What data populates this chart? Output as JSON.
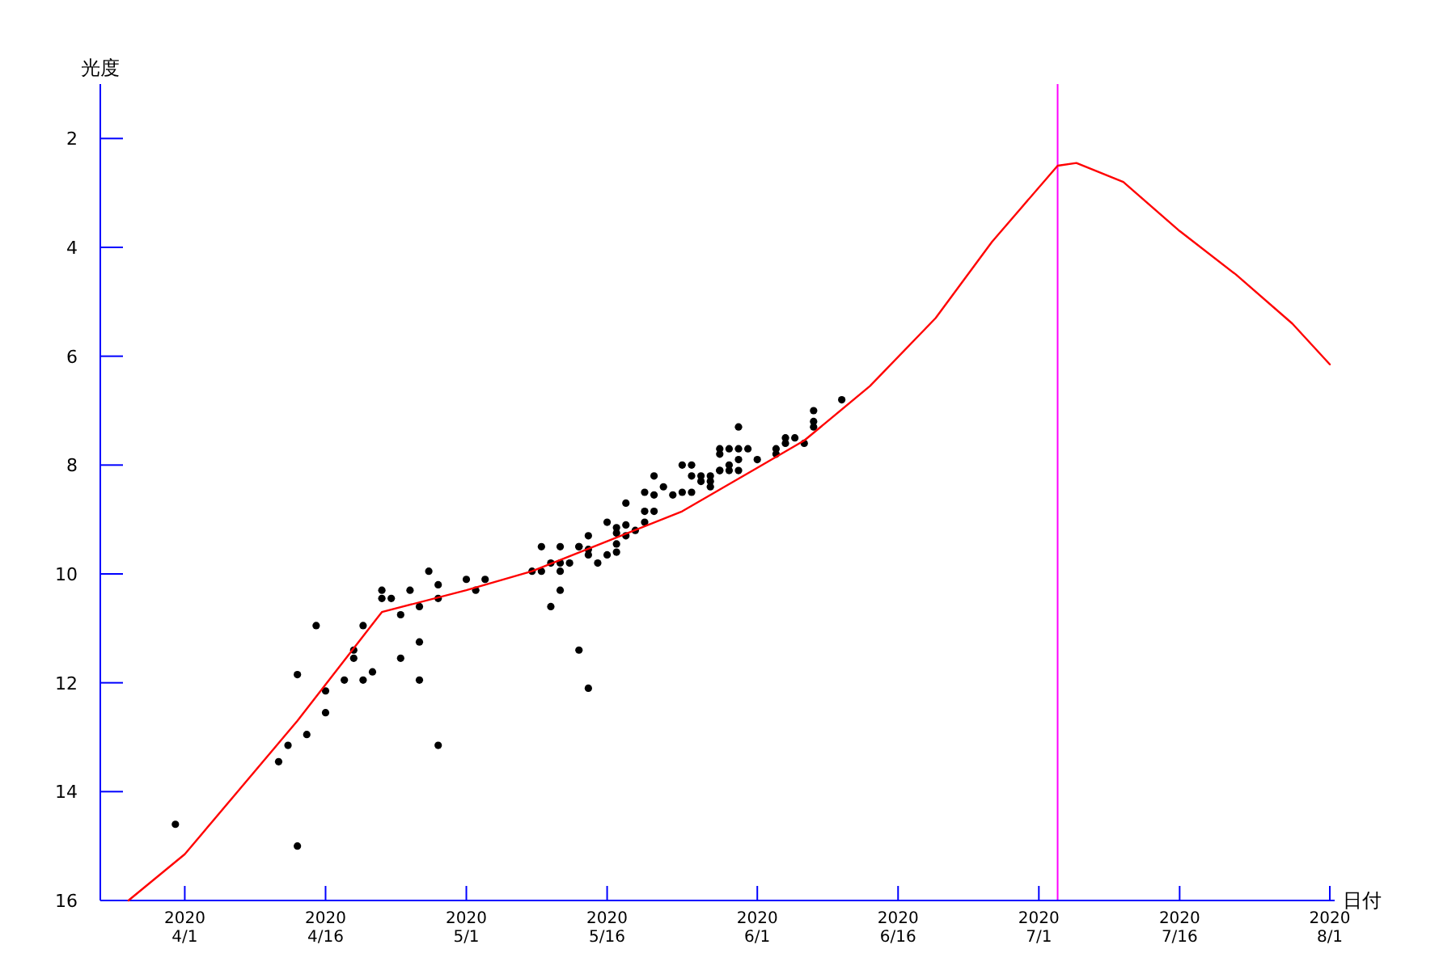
{
  "chart_data": {
    "type": "scatter",
    "xlabel": "日付",
    "ylabel": "光度",
    "xlim": [
      "2020-03-23",
      "2020-08-01"
    ],
    "ylim": [
      16,
      1
    ],
    "xticks": [
      {
        "value": "2020-04-01",
        "label": "2020\n4/1"
      },
      {
        "value": "2020-04-16",
        "label": "2020\n4/16"
      },
      {
        "value": "2020-05-01",
        "label": "2020\n5/1"
      },
      {
        "value": "2020-05-16",
        "label": "2020\n5/16"
      },
      {
        "value": "2020-06-01",
        "label": "2020\n6/1"
      },
      {
        "value": "2020-06-16",
        "label": "2020\n6/16"
      },
      {
        "value": "2020-07-01",
        "label": "2020\n7/1"
      },
      {
        "value": "2020-07-16",
        "label": "2020\n7/16"
      },
      {
        "value": "2020-08-01",
        "label": "2020\n8/1"
      }
    ],
    "yticks": [
      2,
      4,
      6,
      8,
      10,
      12,
      14,
      16
    ],
    "ref_lines": [
      {
        "axis": "x",
        "value": "2020-07-03",
        "color": "#ff00ff"
      }
    ],
    "series": [
      {
        "marker": "circle",
        "color": "#000000",
        "x": [
          "2020-03-31",
          "2020-04-11",
          "2020-04-12",
          "2020-04-13",
          "2020-04-13",
          "2020-04-14",
          "2020-04-15",
          "2020-04-16",
          "2020-04-16",
          "2020-04-18",
          "2020-04-19",
          "2020-04-19",
          "2020-04-20",
          "2020-04-20",
          "2020-04-21",
          "2020-04-22",
          "2020-04-22",
          "2020-04-23",
          "2020-04-24",
          "2020-04-24",
          "2020-04-25",
          "2020-04-26",
          "2020-04-26",
          "2020-04-26",
          "2020-04-27",
          "2020-04-28",
          "2020-04-28",
          "2020-04-28",
          "2020-05-01",
          "2020-05-02",
          "2020-05-03",
          "2020-05-08",
          "2020-05-09",
          "2020-05-09",
          "2020-05-10",
          "2020-05-10",
          "2020-05-11",
          "2020-05-11",
          "2020-05-11",
          "2020-05-11",
          "2020-05-12",
          "2020-05-13",
          "2020-05-13",
          "2020-05-13",
          "2020-05-14",
          "2020-05-14",
          "2020-05-14",
          "2020-05-14",
          "2020-05-15",
          "2020-05-16",
          "2020-05-16",
          "2020-05-17",
          "2020-05-17",
          "2020-05-17",
          "2020-05-17",
          "2020-05-18",
          "2020-05-18",
          "2020-05-18",
          "2020-05-19",
          "2020-05-20",
          "2020-05-20",
          "2020-05-20",
          "2020-05-21",
          "2020-05-21",
          "2020-05-21",
          "2020-05-22",
          "2020-05-23",
          "2020-05-24",
          "2020-05-24",
          "2020-05-25",
          "2020-05-25",
          "2020-05-25",
          "2020-05-26",
          "2020-05-26",
          "2020-05-27",
          "2020-05-27",
          "2020-05-27",
          "2020-05-28",
          "2020-05-28",
          "2020-05-28",
          "2020-05-28",
          "2020-05-29",
          "2020-05-29",
          "2020-05-29",
          "2020-05-30",
          "2020-05-30",
          "2020-05-30",
          "2020-05-30",
          "2020-05-31",
          "2020-06-01",
          "2020-06-03",
          "2020-06-03",
          "2020-06-04",
          "2020-06-04",
          "2020-06-05",
          "2020-06-06",
          "2020-06-07",
          "2020-06-07",
          "2020-06-07",
          "2020-06-10"
        ],
        "values": [
          14.6,
          13.45,
          13.15,
          11.85,
          15.0,
          12.95,
          10.95,
          12.15,
          12.55,
          11.95,
          11.4,
          11.55,
          11.95,
          10.95,
          11.8,
          10.3,
          10.45,
          10.45,
          11.55,
          10.75,
          10.3,
          10.6,
          11.95,
          11.25,
          9.95,
          10.2,
          10.45,
          13.15,
          10.1,
          10.3,
          10.1,
          9.95,
          9.95,
          9.5,
          9.8,
          10.6,
          9.95,
          10.3,
          9.5,
          9.8,
          9.8,
          9.5,
          11.4,
          9.5,
          9.65,
          9.3,
          12.1,
          9.55,
          9.8,
          9.65,
          9.05,
          9.45,
          9.6,
          9.25,
          9.15,
          9.1,
          9.3,
          8.7,
          9.2,
          8.85,
          9.05,
          8.5,
          8.85,
          8.55,
          8.2,
          8.4,
          8.55,
          8.0,
          8.5,
          8.5,
          8.0,
          8.2,
          8.2,
          8.3,
          8.4,
          8.2,
          8.3,
          8.1,
          7.7,
          7.8,
          8.1,
          8.1,
          8.0,
          7.7,
          8.1,
          7.9,
          7.7,
          7.3,
          7.7,
          7.9,
          7.7,
          7.8,
          7.5,
          7.6,
          7.5,
          7.6,
          7.3,
          7.2,
          7.0,
          6.8
        ]
      },
      {
        "type": "line",
        "marker": "none",
        "color": "#ff0000",
        "x": [
          "2020-03-26",
          "2020-04-01",
          "2020-04-13",
          "2020-04-22",
          "2020-05-01",
          "2020-05-08",
          "2020-05-16",
          "2020-05-24",
          "2020-06-01",
          "2020-06-06",
          "2020-06-13",
          "2020-06-20",
          "2020-06-26",
          "2020-07-02",
          "2020-07-03",
          "2020-07-05",
          "2020-07-10",
          "2020-07-16",
          "2020-07-22",
          "2020-07-28",
          "2020-08-01"
        ],
        "values": [
          16.0,
          15.15,
          12.7,
          10.7,
          10.3,
          9.95,
          9.4,
          8.85,
          8.05,
          7.55,
          6.55,
          5.3,
          3.9,
          2.7,
          2.5,
          2.45,
          2.8,
          3.7,
          4.5,
          5.4,
          6.15
        ]
      }
    ]
  }
}
